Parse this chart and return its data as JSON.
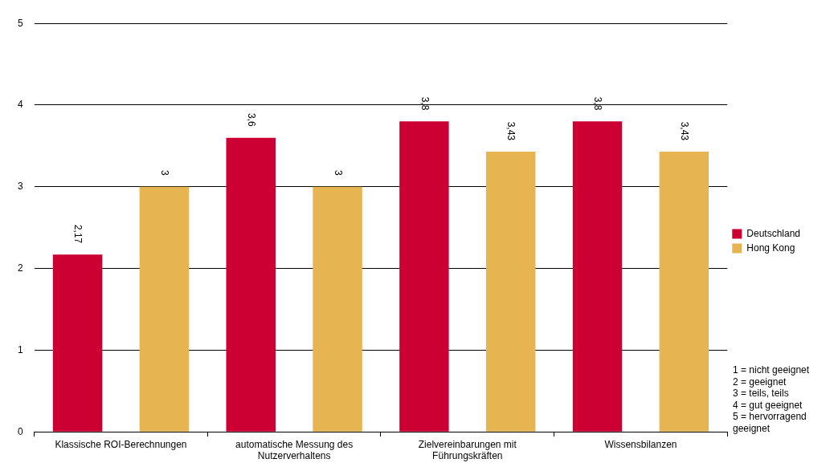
{
  "chart_data": {
    "type": "bar",
    "categories": [
      "Klassische ROI-Berechnungen",
      "automatische Messung des Nutzerverhaltens",
      "Zielvereinbarungen mit Führungskräften",
      "Wissensbilanzen"
    ],
    "series": [
      {
        "name": "Deutschland",
        "color": "#cc0033",
        "values": [
          2.17,
          3.6,
          3.8,
          3.8
        ],
        "value_labels": [
          "2,17",
          "3,6",
          "3,8",
          "3,8"
        ]
      },
      {
        "name": "Hong Kong",
        "color": "#e6b450",
        "values": [
          3,
          3,
          3.43,
          3.43
        ],
        "value_labels": [
          "3",
          "3",
          "3,43",
          "3,43"
        ]
      }
    ],
    "ylim": [
      0,
      5
    ],
    "yticks": [
      0,
      1,
      2,
      3,
      4,
      5
    ],
    "grid": "y",
    "legend": "right",
    "annotations": [
      "1 = nicht geeignet",
      "2 = geeignet",
      "3 = teils, teils",
      "4 = gut geeignet",
      "5 = hervorragend geeignet"
    ]
  }
}
